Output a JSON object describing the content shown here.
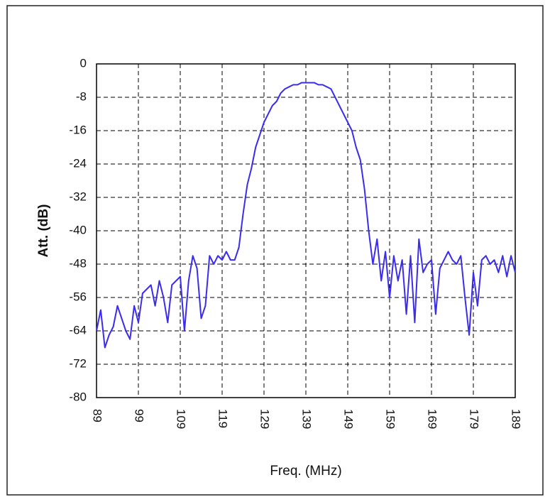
{
  "chart_data": {
    "type": "line",
    "x_label": "Freq. (MHz)",
    "y_label": "Att. (dB)",
    "x": [
      89,
      90,
      91,
      92,
      93,
      94,
      95,
      96,
      97,
      98,
      99,
      100,
      101,
      102,
      103,
      104,
      105,
      106,
      107,
      108,
      109,
      110,
      111,
      112,
      113,
      114,
      115,
      116,
      117,
      118,
      119,
      120,
      121,
      122,
      123,
      124,
      125,
      126,
      127,
      128,
      129,
      130,
      131,
      132,
      133,
      134,
      135,
      136,
      137,
      138,
      139,
      140,
      141,
      142,
      143,
      144,
      145,
      146,
      147,
      148,
      149,
      150,
      151,
      152,
      153,
      154,
      155,
      156,
      157,
      158,
      159,
      160,
      161,
      162,
      163,
      164,
      165,
      166,
      167,
      168,
      169,
      170,
      171,
      172,
      173,
      174,
      175,
      176,
      177,
      178,
      179,
      180,
      181,
      182,
      183,
      184,
      185,
      186,
      187,
      188,
      189
    ],
    "series": [
      {
        "color": "#3b2cf0",
        "values": [
          -64,
          -59,
          -68,
          -65,
          -63,
          -58,
          -61,
          -64,
          -66,
          -58,
          -62,
          -55,
          -54,
          -53,
          -58,
          -52,
          -56,
          -62,
          -53,
          -52,
          -51,
          -64,
          -52,
          -46,
          -49,
          -61,
          -58,
          -46,
          -48,
          -46,
          -47,
          -45,
          -47,
          -47,
          -44,
          -36,
          -29,
          -25,
          -20,
          -17,
          -14,
          -12,
          -10,
          -9,
          -7,
          -6,
          -5.5,
          -5,
          -5,
          -4.5,
          -4.5,
          -4.5,
          -4.5,
          -5,
          -5,
          -5.5,
          -6,
          -8,
          -10,
          -12,
          -14,
          -16,
          -20,
          -23,
          -30,
          -40,
          -48,
          -42,
          -52,
          -45,
          -56,
          -46,
          -52,
          -47,
          -60,
          -46,
          -62,
          -42,
          -50,
          -48,
          -47,
          -60,
          -49,
          -47,
          -45,
          -47,
          -48,
          -46,
          -56,
          -65,
          -50,
          -58,
          -47,
          -46,
          -48,
          -47,
          -50,
          -46,
          -51,
          -46,
          -50
        ]
      }
    ],
    "xlim": [
      89,
      189
    ],
    "ylim": [
      -80,
      0
    ],
    "xticks": [
      89,
      99,
      109,
      119,
      129,
      139,
      149,
      159,
      169,
      179,
      189
    ],
    "yticks": [
      0,
      -8,
      -16,
      -24,
      -32,
      -40,
      -48,
      -56,
      -64,
      -72,
      -80
    ],
    "grid": true
  }
}
